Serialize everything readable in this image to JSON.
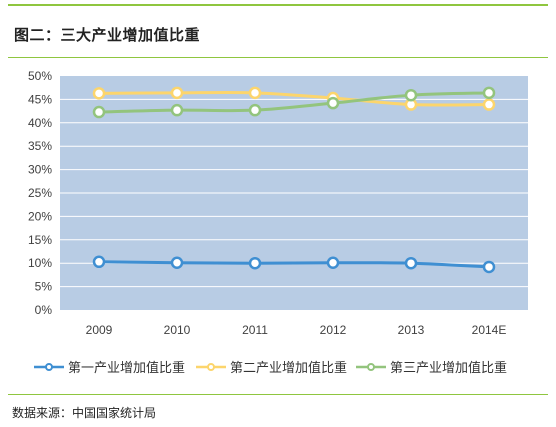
{
  "title": "图二：三大产业增加值比重",
  "source": "数据来源：中国国家统计局",
  "chart_data": {
    "type": "line",
    "categories": [
      "2009",
      "2010",
      "2011",
      "2012",
      "2013",
      "2014E"
    ],
    "y_ticks": [
      "0%",
      "5%",
      "10%",
      "15%",
      "20%",
      "25%",
      "30%",
      "35%",
      "40%",
      "45%",
      "50%"
    ],
    "ylim": [
      0,
      50
    ],
    "grid": true,
    "legend_position": "bottom",
    "plot_background": "#b8cce4",
    "series": [
      {
        "name": "第一产业增加值比重",
        "color": "#3f8fd2",
        "values": [
          10.3,
          10.1,
          10.0,
          10.1,
          10.0,
          9.2
        ]
      },
      {
        "name": "第二产业增加值比重",
        "color": "#fcd56c",
        "values": [
          46.3,
          46.4,
          46.4,
          45.3,
          43.9,
          43.9
        ]
      },
      {
        "name": "第三产业增加值比重",
        "color": "#93c47d",
        "values": [
          42.3,
          42.7,
          42.7,
          44.2,
          45.9,
          46.4
        ]
      }
    ]
  }
}
